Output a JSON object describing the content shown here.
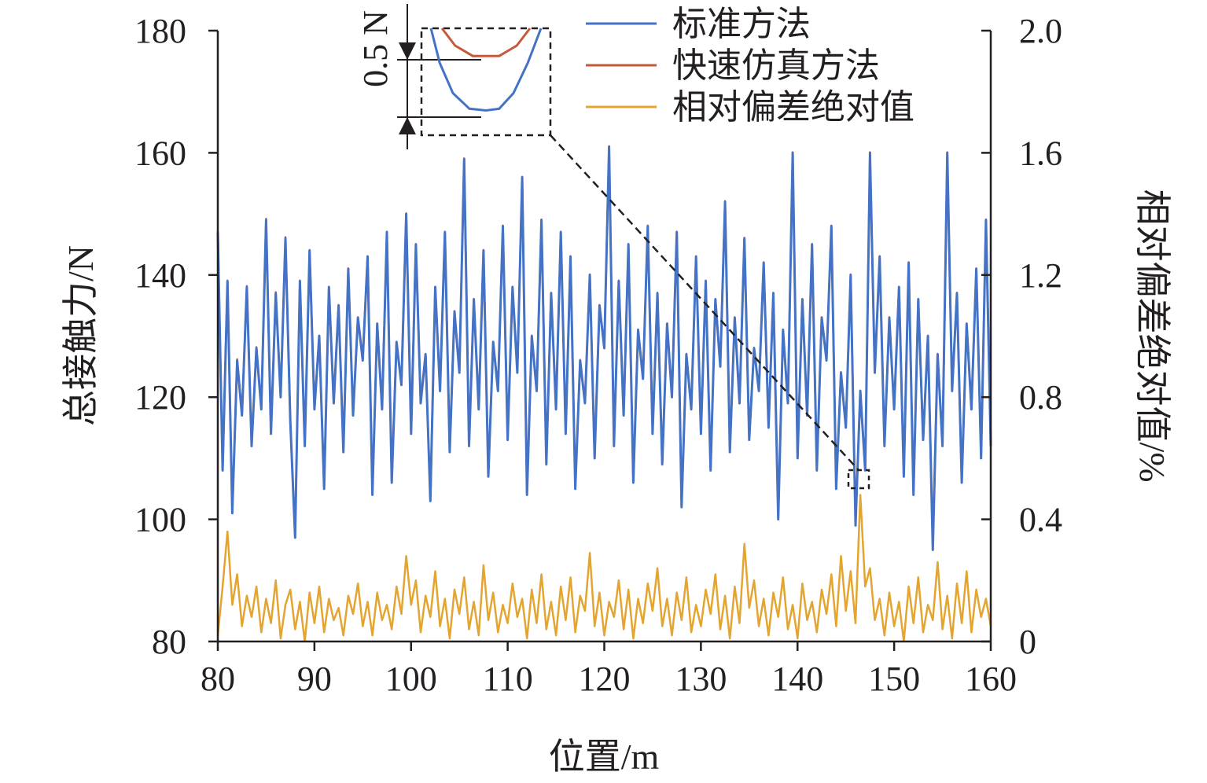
{
  "chart_data": {
    "type": "line",
    "xlabel": "位置/m",
    "ylabel": "总接触力/N",
    "y2label": "相对偏差绝对值/%",
    "xlim": [
      80,
      160
    ],
    "ylim": [
      80,
      180
    ],
    "y2lim": [
      0,
      2.0
    ],
    "x_ticks": [
      "80",
      "90",
      "100",
      "110",
      "120",
      "130",
      "140",
      "150",
      "160"
    ],
    "y_ticks": [
      "80",
      "100",
      "120",
      "140",
      "160",
      "180"
    ],
    "y2_ticks": [
      "0",
      "0.4",
      "0.8",
      "1.2",
      "1.6",
      "2.0"
    ],
    "legend_position": "top",
    "grid": false,
    "series": [
      {
        "name": "标准方法",
        "axis": "left",
        "color": "#4472c4",
        "x": [
          80.0,
          80.5,
          81.0,
          81.5,
          82.0,
          82.5,
          83.0,
          83.5,
          84.0,
          84.5,
          85.0,
          85.5,
          86.0,
          86.5,
          87.0,
          87.5,
          88.0,
          88.5,
          89.0,
          89.5,
          90.0,
          90.5,
          91.0,
          91.5,
          92.0,
          92.5,
          93.0,
          93.5,
          94.0,
          94.5,
          95.0,
          95.5,
          96.0,
          96.5,
          97.0,
          97.5,
          98.0,
          98.5,
          99.0,
          99.5,
          100.0,
          100.5,
          101.0,
          101.5,
          102.0,
          102.5,
          103.0,
          103.5,
          104.0,
          104.5,
          105.0,
          105.5,
          106.0,
          106.5,
          107.0,
          107.5,
          108.0,
          108.5,
          109.0,
          109.5,
          110.0,
          110.5,
          111.0,
          111.5,
          112.0,
          112.5,
          113.0,
          113.5,
          114.0,
          114.5,
          115.0,
          115.5,
          116.0,
          116.5,
          117.0,
          117.5,
          118.0,
          118.5,
          119.0,
          119.5,
          120.0,
          120.5,
          121.0,
          121.5,
          122.0,
          122.5,
          123.0,
          123.5,
          124.0,
          124.5,
          125.0,
          125.5,
          126.0,
          126.5,
          127.0,
          127.5,
          128.0,
          128.5,
          129.0,
          129.5,
          130.0,
          130.5,
          131.0,
          131.5,
          132.0,
          132.5,
          133.0,
          133.5,
          134.0,
          134.5,
          135.0,
          135.5,
          136.0,
          136.5,
          137.0,
          137.5,
          138.0,
          138.5,
          139.0,
          139.5,
          140.0,
          140.5,
          141.0,
          141.5,
          142.0,
          142.5,
          143.0,
          143.5,
          144.0,
          144.5,
          145.0,
          145.5,
          146.0,
          146.5,
          147.0,
          147.5,
          148.0,
          148.5,
          149.0,
          149.5,
          150.0,
          150.5,
          151.0,
          151.5,
          152.0,
          152.5,
          153.0,
          153.5,
          154.0,
          154.5,
          155.0,
          155.5,
          156.0,
          156.5,
          157.0,
          157.5,
          158.0,
          158.5,
          159.0,
          159.5,
          160.0
        ],
        "values": [
          147,
          108,
          139,
          101,
          126,
          117,
          138,
          112,
          128,
          118,
          149,
          114,
          137,
          120,
          146,
          116,
          97,
          139,
          112,
          144,
          118,
          130,
          105,
          138,
          119,
          135,
          111,
          141,
          117,
          133,
          126,
          143,
          104,
          132,
          118,
          147,
          106,
          129,
          122,
          150,
          114,
          145,
          119,
          127,
          103,
          138,
          121,
          147,
          111,
          134,
          124,
          159,
          112,
          136,
          118,
          144,
          107,
          129,
          121,
          148,
          113,
          138,
          124,
          156,
          104,
          130,
          121,
          149,
          109,
          137,
          118,
          147,
          114,
          143,
          105,
          126,
          119,
          140,
          110,
          135,
          128,
          161,
          112,
          139,
          117,
          145,
          106,
          131,
          123,
          148,
          114,
          137,
          109,
          132,
          120,
          147,
          102,
          127,
          118,
          143,
          114,
          139,
          108,
          136,
          125,
          152,
          111,
          133,
          119,
          146,
          113,
          128,
          121,
          142,
          115,
          137,
          100,
          131,
          119,
          160,
          110,
          136,
          117,
          145,
          108,
          133,
          126,
          148,
          105,
          124,
          115,
          140,
          99,
          121,
          108,
          160,
          124,
          143,
          112,
          133,
          118,
          138,
          107,
          142,
          104,
          136,
          113,
          130,
          95,
          127,
          112,
          160,
          121,
          137,
          106,
          132,
          118,
          141,
          110,
          149,
          112
        ]
      },
      {
        "name": "快速仿真方法",
        "axis": "left",
        "color": "#c55a3b",
        "x": [
          80.0,
          80.5,
          81.0,
          81.5,
          82.0,
          82.5,
          83.0,
          83.5,
          84.0,
          84.5,
          85.0,
          85.5,
          86.0,
          86.5,
          87.0,
          87.5,
          88.0,
          88.5,
          89.0,
          89.5,
          90.0,
          90.5,
          91.0,
          91.5,
          92.0,
          92.5,
          93.0,
          93.5,
          94.0,
          94.5,
          95.0,
          95.5,
          96.0,
          96.5,
          97.0,
          97.5,
          98.0,
          98.5,
          99.0,
          99.5,
          100.0,
          100.5,
          101.0,
          101.5,
          102.0,
          102.5,
          103.0,
          103.5,
          104.0,
          104.5,
          105.0,
          105.5,
          106.0,
          106.5,
          107.0,
          107.5,
          108.0,
          108.5,
          109.0,
          109.5,
          110.0,
          110.5,
          111.0,
          111.5,
          112.0,
          112.5,
          113.0,
          113.5,
          114.0,
          114.5,
          115.0,
          115.5,
          116.0,
          116.5,
          117.0,
          117.5,
          118.0,
          118.5,
          119.0,
          119.5,
          120.0,
          120.5,
          121.0,
          121.5,
          122.0,
          122.5,
          123.0,
          123.5,
          124.0,
          124.5,
          125.0,
          125.5,
          126.0,
          126.5,
          127.0,
          127.5,
          128.0,
          128.5,
          129.0,
          129.5,
          130.0,
          130.5,
          131.0,
          131.5,
          132.0,
          132.5,
          133.0,
          133.5,
          134.0,
          134.5,
          135.0,
          135.5,
          136.0,
          136.5,
          137.0,
          137.5,
          138.0,
          138.5,
          139.0,
          139.5,
          140.0,
          140.5,
          141.0,
          141.5,
          142.0,
          142.5,
          143.0,
          143.5,
          144.0,
          144.5,
          145.0,
          145.5,
          146.0,
          146.5,
          147.0,
          147.5,
          148.0,
          148.5,
          149.0,
          149.5,
          150.0,
          150.5,
          151.0,
          151.5,
          152.0,
          152.5,
          153.0,
          153.5,
          154.0,
          154.5,
          155.0,
          155.5,
          156.0,
          156.5,
          157.0,
          157.5,
          158.0,
          158.5,
          159.0,
          159.5,
          160.0
        ],
        "values": [
          147.2,
          108.2,
          139.1,
          101.3,
          126.2,
          117.1,
          138.2,
          112.1,
          128.2,
          118.1,
          149.2,
          114.1,
          137.2,
          120.1,
          146.2,
          116.1,
          97.2,
          139.1,
          112.2,
          144.1,
          118.2,
          130.1,
          105.2,
          138.1,
          119.2,
          135.1,
          111.2,
          141.1,
          117.2,
          133.1,
          126.2,
          143.1,
          104.2,
          132.1,
          118.2,
          147.1,
          106.2,
          129.1,
          122.2,
          150.1,
          114.2,
          145.1,
          119.2,
          127.1,
          103.2,
          138.1,
          121.2,
          147.1,
          111.2,
          134.1,
          124.2,
          159.1,
          112.2,
          136.1,
          118.2,
          144.1,
          107.2,
          129.1,
          121.2,
          148.1,
          113.2,
          138.1,
          124.2,
          156.1,
          104.2,
          130.1,
          121.2,
          149.1,
          109.2,
          137.1,
          118.2,
          147.1,
          114.2,
          143.1,
          105.2,
          126.1,
          119.2,
          140.1,
          110.2,
          135.1,
          128.2,
          161.1,
          112.2,
          139.1,
          117.2,
          145.1,
          106.2,
          131.1,
          123.2,
          148.1,
          114.2,
          137.1,
          109.2,
          132.1,
          120.2,
          147.1,
          102.2,
          127.1,
          118.2,
          143.1,
          114.2,
          139.1,
          108.2,
          136.1,
          125.2,
          152.1,
          111.2,
          133.1,
          119.2,
          146.1,
          113.2,
          128.1,
          121.2,
          142.1,
          115.2,
          137.1,
          100.2,
          131.1,
          119.2,
          160.1,
          110.2,
          136.1,
          117.2,
          145.1,
          108.2,
          133.1,
          126.2,
          148.1,
          105.2,
          124.1,
          115.2,
          140.1,
          99.2,
          121.1,
          108.2,
          160.1,
          124.2,
          143.1,
          112.2,
          133.1,
          118.2,
          138.1,
          107.2,
          142.1,
          104.2,
          136.1,
          113.2,
          130.1,
          95.2,
          127.1,
          112.2,
          160.1,
          121.2,
          137.1,
          106.2,
          132.1,
          118.2,
          141.1,
          110.2,
          149.1,
          112.2
        ]
      },
      {
        "name": "相对偏差绝对值",
        "axis": "right",
        "color": "#e3a530",
        "x": [
          80.0,
          80.5,
          81.0,
          81.5,
          82.0,
          82.5,
          83.0,
          83.5,
          84.0,
          84.5,
          85.0,
          85.5,
          86.0,
          86.5,
          87.0,
          87.5,
          88.0,
          88.5,
          89.0,
          89.5,
          90.0,
          90.5,
          91.0,
          91.5,
          92.0,
          92.5,
          93.0,
          93.5,
          94.0,
          94.5,
          95.0,
          95.5,
          96.0,
          96.5,
          97.0,
          97.5,
          98.0,
          98.5,
          99.0,
          99.5,
          100.0,
          100.5,
          101.0,
          101.5,
          102.0,
          102.5,
          103.0,
          103.5,
          104.0,
          104.5,
          105.0,
          105.5,
          106.0,
          106.5,
          107.0,
          107.5,
          108.0,
          108.5,
          109.0,
          109.5,
          110.0,
          110.5,
          111.0,
          111.5,
          112.0,
          112.5,
          113.0,
          113.5,
          114.0,
          114.5,
          115.0,
          115.5,
          116.0,
          116.5,
          117.0,
          117.5,
          118.0,
          118.5,
          119.0,
          119.5,
          120.0,
          120.5,
          121.0,
          121.5,
          122.0,
          122.5,
          123.0,
          123.5,
          124.0,
          124.5,
          125.0,
          125.5,
          126.0,
          126.5,
          127.0,
          127.5,
          128.0,
          128.5,
          129.0,
          129.5,
          130.0,
          130.5,
          131.0,
          131.5,
          132.0,
          132.5,
          133.0,
          133.5,
          134.0,
          134.5,
          135.0,
          135.5,
          136.0,
          136.5,
          137.0,
          137.5,
          138.0,
          138.5,
          139.0,
          139.5,
          140.0,
          140.5,
          141.0,
          141.5,
          142.0,
          142.5,
          143.0,
          143.5,
          144.0,
          144.5,
          145.0,
          145.5,
          146.0,
          146.5,
          147.0,
          147.5,
          148.0,
          148.5,
          149.0,
          149.5,
          150.0,
          150.5,
          151.0,
          151.5,
          152.0,
          152.5,
          153.0,
          153.5,
          154.0,
          154.5,
          155.0,
          155.5,
          156.0,
          156.5,
          157.0,
          157.5,
          158.0,
          158.5,
          159.0,
          159.5,
          160.0
        ],
        "values": [
          0.02,
          0.18,
          0.36,
          0.12,
          0.22,
          0.05,
          0.15,
          0.08,
          0.18,
          0.03,
          0.14,
          0.06,
          0.2,
          0.01,
          0.12,
          0.17,
          0.04,
          0.13,
          0.0,
          0.16,
          0.06,
          0.18,
          0.03,
          0.14,
          0.07,
          0.11,
          0.02,
          0.15,
          0.09,
          0.19,
          0.05,
          0.13,
          0.02,
          0.16,
          0.07,
          0.12,
          0.04,
          0.18,
          0.09,
          0.28,
          0.12,
          0.2,
          0.03,
          0.15,
          0.08,
          0.23,
          0.05,
          0.14,
          0.01,
          0.17,
          0.09,
          0.21,
          0.04,
          0.13,
          0.02,
          0.25,
          0.07,
          0.16,
          0.03,
          0.12,
          0.06,
          0.19,
          0.08,
          0.14,
          0.01,
          0.17,
          0.06,
          0.22,
          0.04,
          0.13,
          0.02,
          0.18,
          0.07,
          0.21,
          0.03,
          0.15,
          0.1,
          0.29,
          0.05,
          0.16,
          0.02,
          0.13,
          0.08,
          0.2,
          0.04,
          0.17,
          0.01,
          0.14,
          0.06,
          0.19,
          0.1,
          0.24,
          0.05,
          0.14,
          0.02,
          0.16,
          0.07,
          0.21,
          0.03,
          0.12,
          0.05,
          0.17,
          0.09,
          0.22,
          0.04,
          0.15,
          0.01,
          0.18,
          0.06,
          0.32,
          0.11,
          0.2,
          0.05,
          0.14,
          0.02,
          0.16,
          0.08,
          0.21,
          0.04,
          0.12,
          0.01,
          0.19,
          0.07,
          0.13,
          0.03,
          0.17,
          0.09,
          0.22,
          0.05,
          0.28,
          0.1,
          0.23,
          0.06,
          0.48,
          0.18,
          0.24,
          0.07,
          0.14,
          0.02,
          0.16,
          0.05,
          0.13,
          0.0,
          0.18,
          0.06,
          0.21,
          0.03,
          0.12,
          0.07,
          0.26,
          0.04,
          0.15,
          0.01,
          0.19,
          0.06,
          0.23,
          0.03,
          0.17,
          0.08,
          0.14,
          0.05
        ]
      }
    ],
    "inset": {
      "dimension_label": "0.5 N",
      "standard_curve": [
        [
          0.0,
          1.0
        ],
        [
          0.08,
          0.6
        ],
        [
          0.2,
          0.25
        ],
        [
          0.35,
          0.07
        ],
        [
          0.5,
          0.05
        ],
        [
          0.62,
          0.07
        ],
        [
          0.75,
          0.25
        ],
        [
          0.88,
          0.6
        ],
        [
          1.0,
          1.0
        ]
      ],
      "fast_curve": [
        [
          0.1,
          1.0
        ],
        [
          0.22,
          0.8
        ],
        [
          0.38,
          0.68
        ],
        [
          0.5,
          0.68
        ],
        [
          0.62,
          0.68
        ],
        [
          0.78,
          0.8
        ],
        [
          0.9,
          1.0
        ]
      ]
    }
  }
}
